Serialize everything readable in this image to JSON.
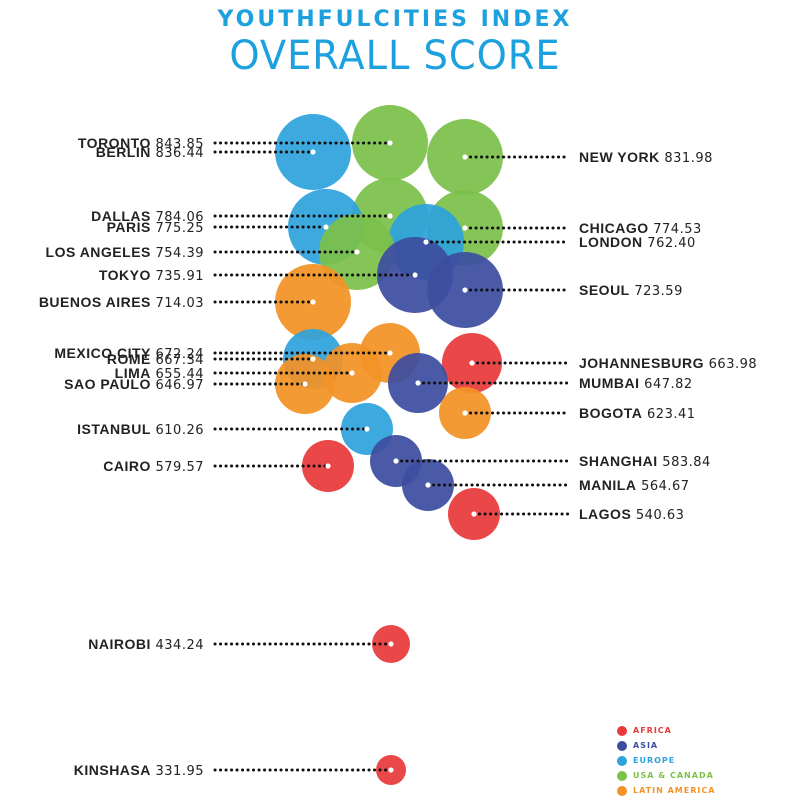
{
  "header": {
    "title": "YOUTHFULCITIES INDEX",
    "subtitle": "OVERALL SCORE"
  },
  "legend": [
    {
      "label": "AFRICA",
      "color": "#e8393a"
    },
    {
      "label": "ASIA",
      "color": "#3d4da0"
    },
    {
      "label": "EUROPE",
      "color": "#2ea3dd"
    },
    {
      "label": "USA & CANADA",
      "color": "#7cc14a"
    },
    {
      "label": "LATIN AMERICA",
      "color": "#f39226"
    }
  ],
  "chart_data": {
    "type": "scatter",
    "title": "YOUTHFULCITIES INDEX",
    "subtitle": "OVERALL SCORE",
    "points": [
      {
        "city": "TORONTO",
        "score": 843.85,
        "region": "USA & CANADA",
        "label_side": "left"
      },
      {
        "city": "BERLIN",
        "score": 836.44,
        "region": "EUROPE",
        "label_side": "left"
      },
      {
        "city": "NEW YORK",
        "score": 831.98,
        "region": "USA & CANADA",
        "label_side": "right"
      },
      {
        "city": "DALLAS",
        "score": 784.06,
        "region": "USA & CANADA",
        "label_side": "left"
      },
      {
        "city": "PARIS",
        "score": 775.25,
        "region": "EUROPE",
        "label_side": "left"
      },
      {
        "city": "CHICAGO",
        "score": 774.53,
        "region": "USA & CANADA",
        "label_side": "right"
      },
      {
        "city": "LONDON",
        "score": 762.4,
        "region": "EUROPE",
        "label_side": "right"
      },
      {
        "city": "LOS ANGELES",
        "score": 754.39,
        "region": "USA & CANADA",
        "label_side": "left"
      },
      {
        "city": "TOKYO",
        "score": 735.91,
        "region": "ASIA",
        "label_side": "left"
      },
      {
        "city": "SEOUL",
        "score": 723.59,
        "region": "ASIA",
        "label_side": "right"
      },
      {
        "city": "BUENOS AIRES",
        "score": 714.03,
        "region": "LATIN AMERICA",
        "label_side": "left"
      },
      {
        "city": "MEXICO CITY",
        "score": 672.24,
        "region": "LATIN AMERICA",
        "label_side": "left"
      },
      {
        "city": "ROME",
        "score": 667.34,
        "region": "EUROPE",
        "label_side": "left"
      },
      {
        "city": "JOHANNESBURG",
        "score": 663.98,
        "region": "AFRICA",
        "label_side": "right"
      },
      {
        "city": "LIMA",
        "score": 655.44,
        "region": "LATIN AMERICA",
        "label_side": "left"
      },
      {
        "city": "MUMBAI",
        "score": 647.82,
        "region": "ASIA",
        "label_side": "right"
      },
      {
        "city": "SAO PAULO",
        "score": 646.97,
        "region": "LATIN AMERICA",
        "label_side": "left"
      },
      {
        "city": "BOGOTA",
        "score": 623.41,
        "region": "LATIN AMERICA",
        "label_side": "right"
      },
      {
        "city": "ISTANBUL",
        "score": 610.26,
        "region": "EUROPE",
        "label_side": "left"
      },
      {
        "city": "SHANGHAI",
        "score": 583.84,
        "region": "ASIA",
        "label_side": "right"
      },
      {
        "city": "CAIRO",
        "score": 579.57,
        "region": "AFRICA",
        "label_side": "left"
      },
      {
        "city": "MANILA",
        "score": 564.67,
        "region": "ASIA",
        "label_side": "right"
      },
      {
        "city": "LAGOS",
        "score": 540.63,
        "region": "AFRICA",
        "label_side": "right"
      },
      {
        "city": "NAIROBI",
        "score": 434.24,
        "region": "AFRICA",
        "label_side": "left"
      },
      {
        "city": "KINSHASA",
        "score": 331.95,
        "region": "AFRICA",
        "label_side": "left"
      }
    ]
  }
}
